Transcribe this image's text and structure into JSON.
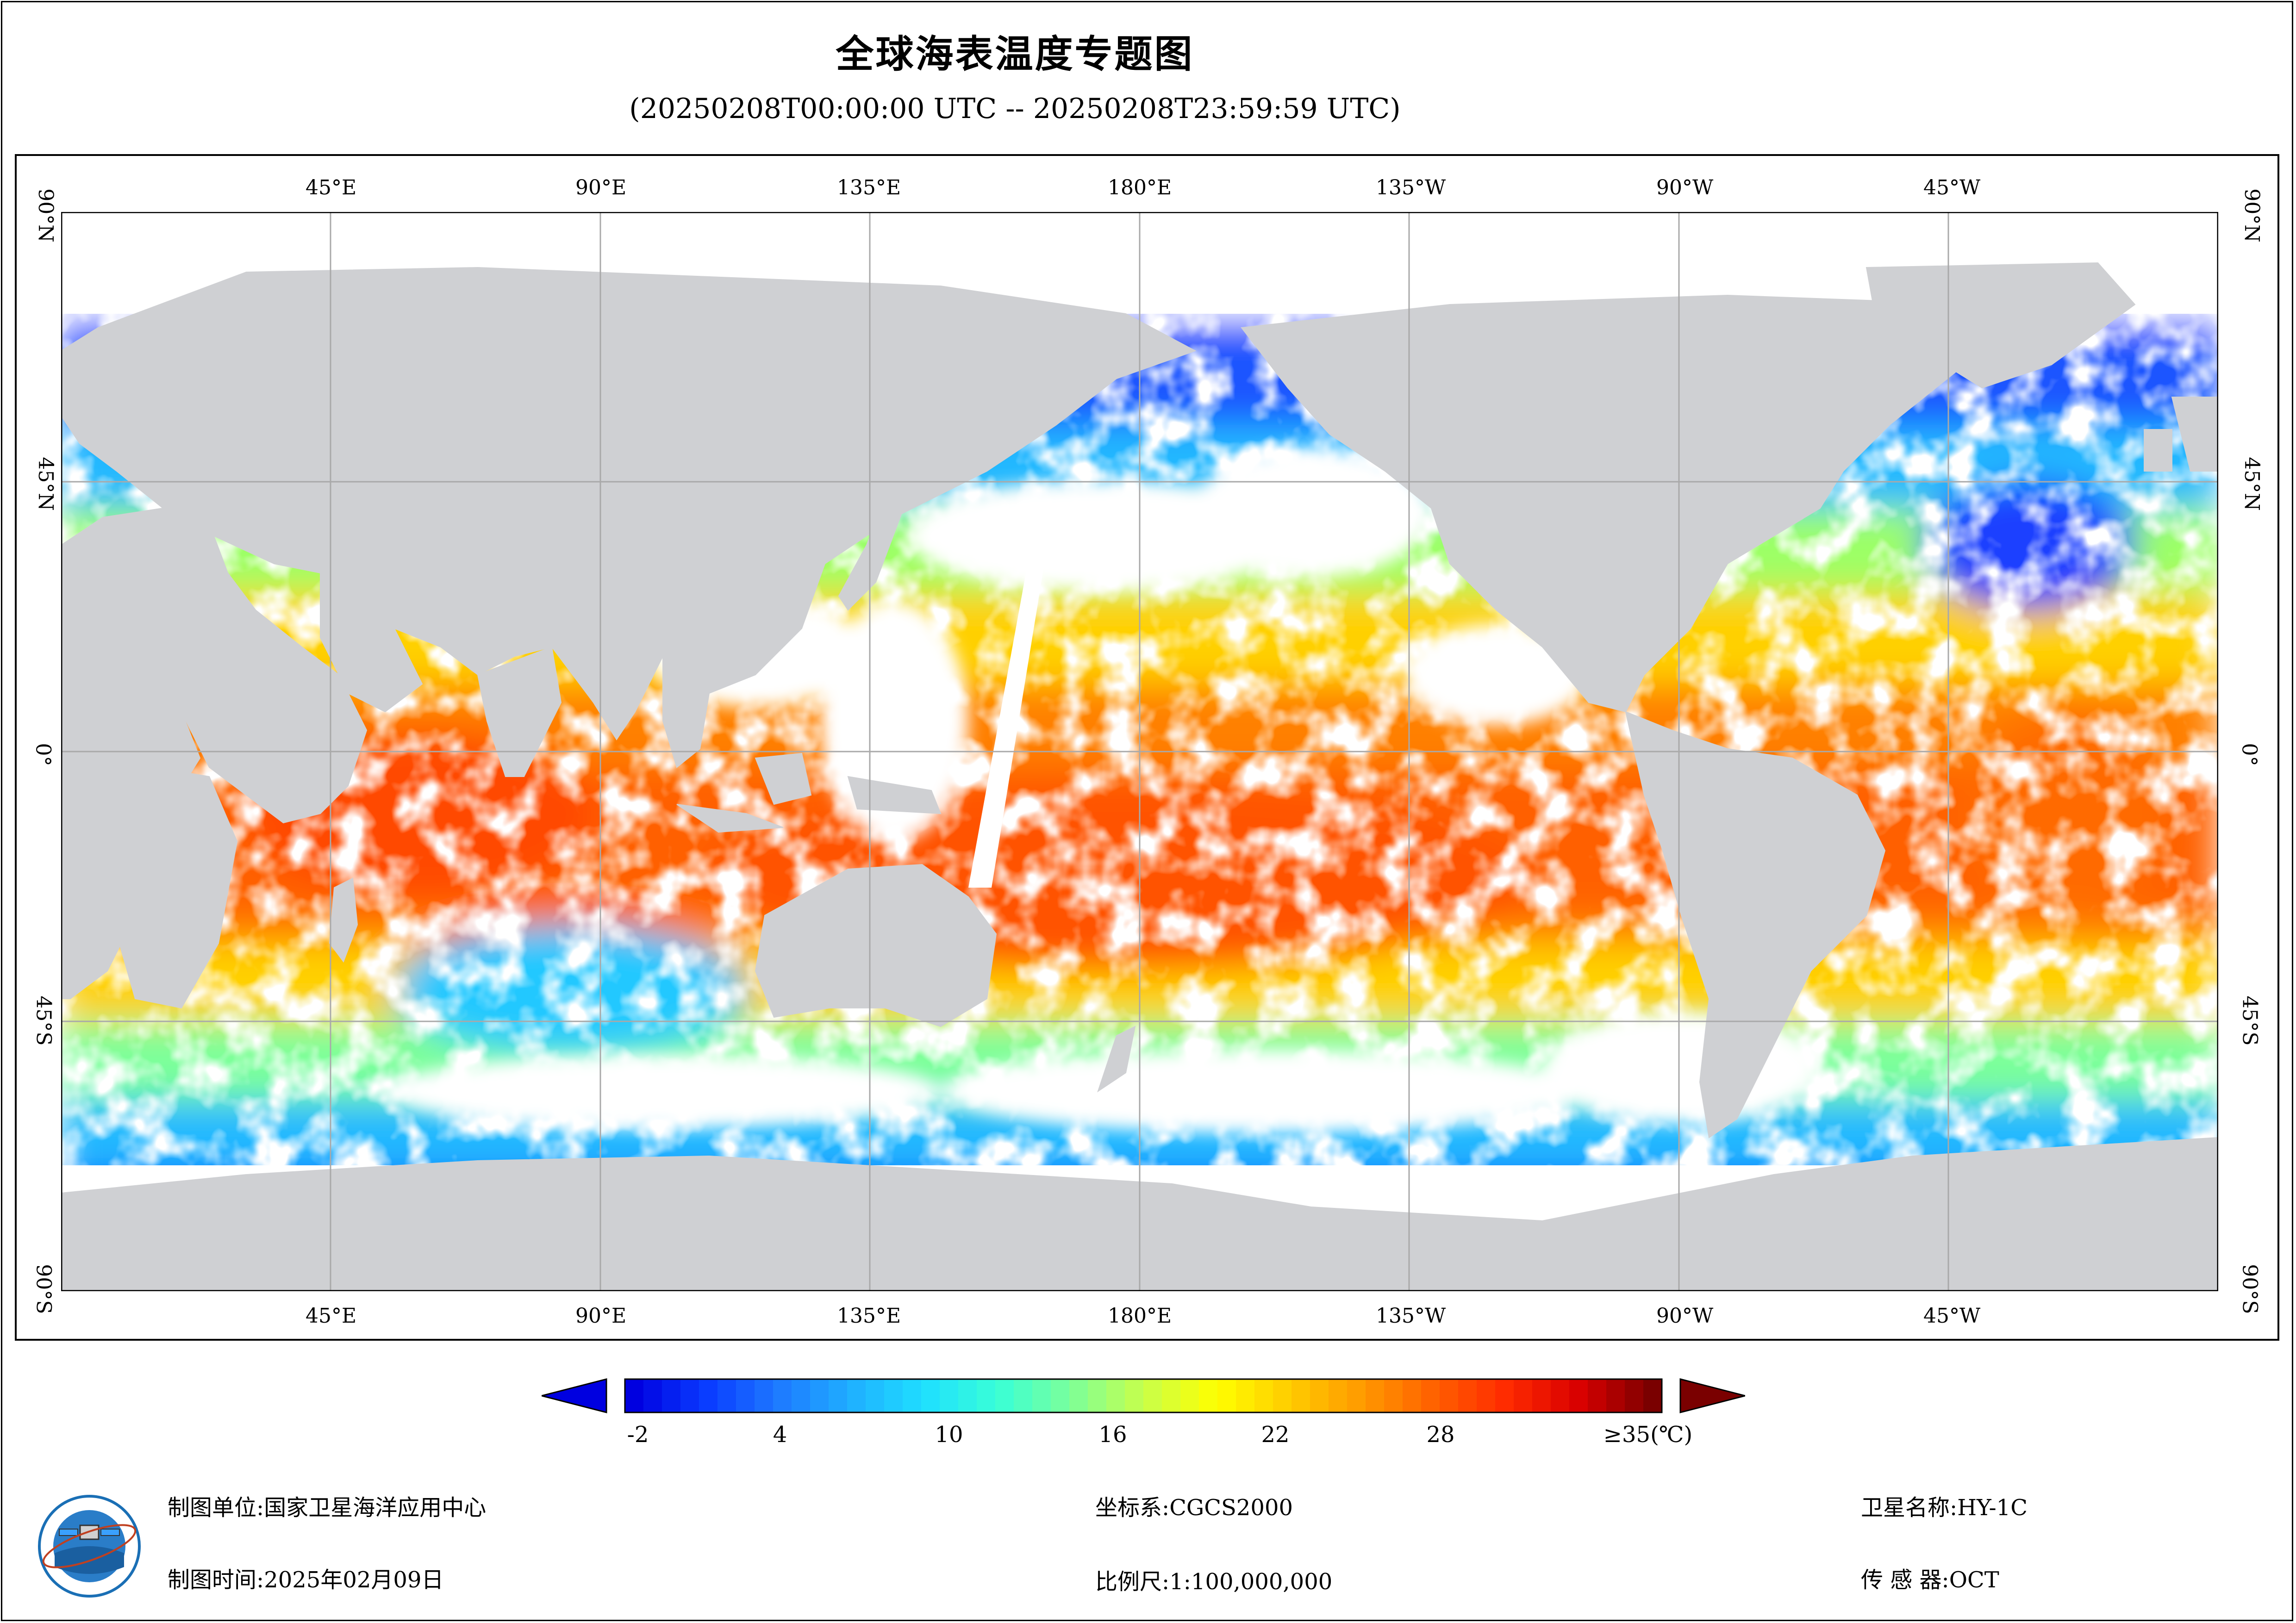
{
  "title": "全球海表温度专题图",
  "subtitle": "(20250208T00:00:00 UTC -- 20250208T23:59:59 UTC)",
  "map": {
    "top_lon_labels": [
      "45°E",
      "90°E",
      "135°E",
      "180°E",
      "135°W",
      "90°W",
      "45°W"
    ],
    "bottom_lon_labels": [
      "45°E",
      "90°E",
      "135°E",
      "180°E",
      "135°W",
      "90°W",
      "45°W"
    ],
    "lat_labels": [
      "90°N",
      "45°N",
      "0°",
      "45°S",
      "90°S"
    ],
    "colors": {
      "land": "#cfd0d3",
      "cloud": "#ffffff",
      "grid": "#a9a9a9"
    }
  },
  "colorbar": {
    "ticks": [
      "-2",
      "4",
      "10",
      "16",
      "22",
      "28",
      "≥35(℃)"
    ],
    "min": -2,
    "max": 35,
    "colors": [
      "#0000e0",
      "#0a3cff",
      "#1e7bff",
      "#1fb0ff",
      "#1fe0ff",
      "#39ffd6",
      "#7cff9a",
      "#c8ff4a",
      "#ffff00",
      "#ffcc00",
      "#ff9a00",
      "#ff6000",
      "#ff2a00",
      "#d80000",
      "#7a0000"
    ]
  },
  "footer": {
    "unit_label": "制图单位:",
    "unit_value": "国家卫星海洋应用中心",
    "time_label": "制图时间:",
    "time_value": "2025年02月09日",
    "crs_label": "坐标系:",
    "crs_value": "CGCS2000",
    "scale_label": "比例尺:",
    "scale_value": "1:100,000,000",
    "sat_label": "卫星名称:",
    "sat_value": "HY-1C",
    "sensor_label": "传 感 器:",
    "sensor_value": "OCT"
  },
  "logo": {
    "icon": "satellite-ocean-logo-icon"
  }
}
